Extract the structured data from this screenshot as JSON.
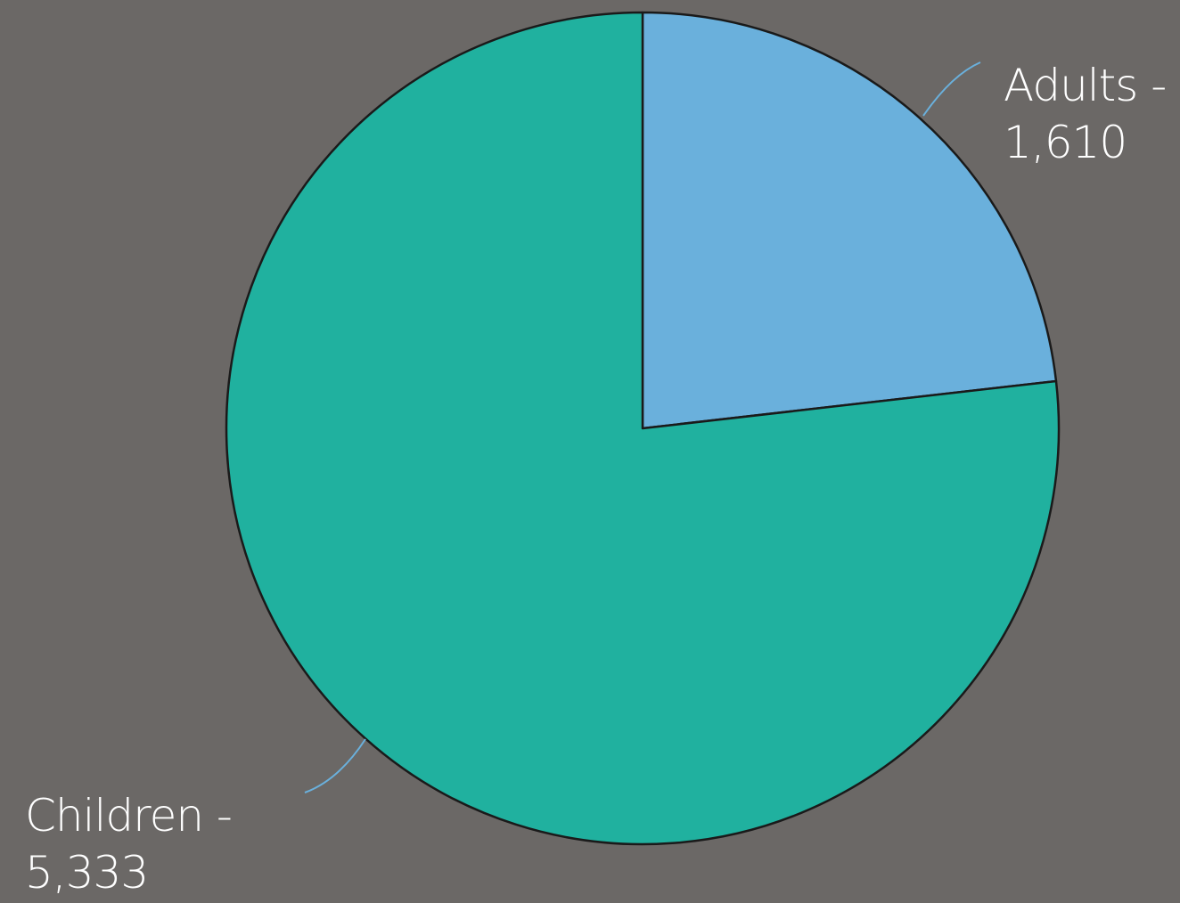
{
  "chart_data": {
    "type": "pie",
    "slices": [
      {
        "label": "Adults",
        "value": 1610,
        "value_label": "1,610",
        "color": "#6ab0dc"
      },
      {
        "label": "Children",
        "value": 5333,
        "value_label": "5,333",
        "color": "#20b19f"
      }
    ],
    "start_angle": "12 o'clock",
    "direction": "clockwise",
    "legend": "none",
    "label_style": "outside labels with leader lines"
  },
  "labels": {
    "adults": {
      "name": "Adults -",
      "value": "1,610"
    },
    "children": {
      "name": "Children -",
      "value": "5,333"
    }
  },
  "colors": {
    "background": "#6b6866",
    "slice_outline": "#1a1a1a",
    "leader_line": "#6ab0dc",
    "label_text": "#ffffff"
  }
}
